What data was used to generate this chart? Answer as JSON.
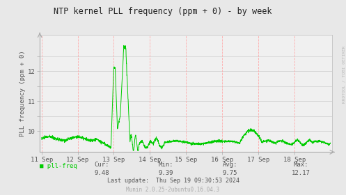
{
  "title": "NTP kernel PLL frequency (ppm + 0) - by week",
  "ylabel": "PLL frequency (ppm + 0)",
  "bg_color": "#e8e8e8",
  "plot_bg_color": "#f0f0f0",
  "line_color": "#00cc00",
  "grid_color_h": "#cccccc",
  "grid_color_v": "#ffaaaa",
  "ylim_min": 9.3,
  "ylim_max": 13.2,
  "ytick_vals": [
    10.0,
    10.5,
    11.0,
    11.5,
    12.0,
    12.5
  ],
  "ytick_labels": [
    "10",
    "",
    "11",
    "",
    "12",
    ""
  ],
  "legend_label": "pll-freq",
  "legend_color": "#00cc00",
  "cur_label": "Cur:",
  "cur_val": "9.48",
  "min_label": "Min:",
  "min_val": "9.39",
  "avg_label": "Avg:",
  "avg_val": "9.75",
  "max_label": "Max:",
  "max_val": "12.17",
  "last_update": "Last update:  Thu Sep 19 09:30:53 2024",
  "munin_text": "Munin 2.0.25-2ubuntu0.16.04.3",
  "watermark": "RRDTOOL / TOBI OETIKER",
  "x_tick_labels": [
    "11 Sep",
    "12 Sep",
    "13 Sep",
    "14 Sep",
    "15 Sep",
    "16 Sep",
    "17 Sep",
    "18 Sep"
  ],
  "x_tick_positions": [
    0,
    1,
    2,
    3,
    4,
    5,
    6,
    7
  ],
  "font_color": "#555555",
  "font_color_light": "#aaaaaa"
}
